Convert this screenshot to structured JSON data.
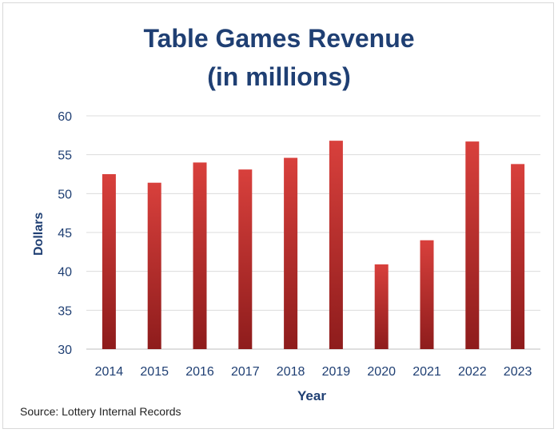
{
  "chart_data": {
    "type": "bar",
    "title_line1": "Table Games Revenue",
    "title_line2": "(in millions)",
    "xlabel": "Year",
    "ylabel": "Dollars",
    "categories": [
      "2014",
      "2015",
      "2016",
      "2017",
      "2018",
      "2019",
      "2020",
      "2021",
      "2022",
      "2023"
    ],
    "values": [
      52.5,
      51.4,
      54.0,
      53.1,
      54.6,
      56.8,
      40.9,
      44.0,
      56.7,
      53.8
    ],
    "ylim": [
      30,
      60
    ],
    "yticks": [
      30,
      35,
      40,
      45,
      50,
      55,
      60
    ],
    "grid": true,
    "bar_color": "#c0302d",
    "source": "Source:  Lottery Internal Records"
  }
}
